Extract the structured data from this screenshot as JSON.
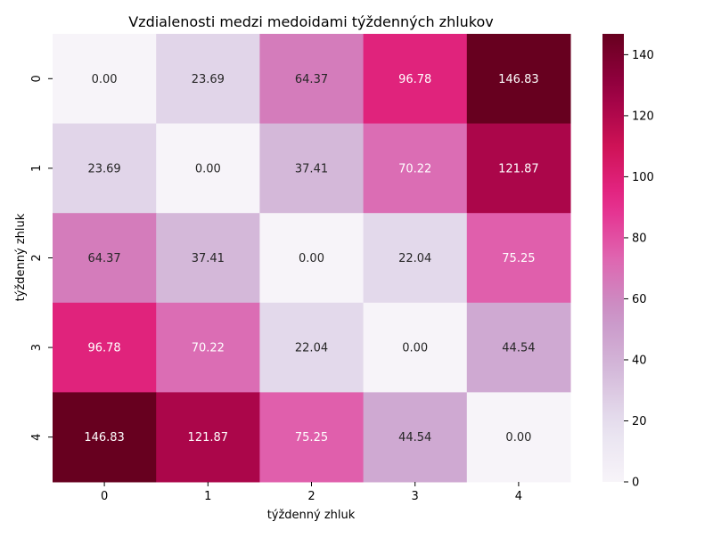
{
  "chart_data": {
    "type": "heatmap",
    "title": "Vzdialenosti medzi medoidami týždenných zhlukov",
    "xlabel": "týždenný zhluk",
    "ylabel": "týždenný zhluk",
    "x_categories": [
      "0",
      "1",
      "2",
      "3",
      "4"
    ],
    "y_categories": [
      "0",
      "1",
      "2",
      "3",
      "4"
    ],
    "values": [
      [
        0.0,
        23.69,
        64.37,
        96.78,
        146.83
      ],
      [
        23.69,
        0.0,
        37.41,
        70.22,
        121.87
      ],
      [
        64.37,
        37.41,
        0.0,
        22.04,
        75.25
      ],
      [
        96.78,
        70.22,
        22.04,
        0.0,
        44.54
      ],
      [
        146.83,
        121.87,
        75.25,
        44.54,
        0.0
      ]
    ],
    "value_labels": [
      [
        "0.00",
        "23.69",
        "64.37",
        "96.78",
        "146.83"
      ],
      [
        "23.69",
        "0.00",
        "37.41",
        "70.22",
        "121.87"
      ],
      [
        "64.37",
        "37.41",
        "0.00",
        "22.04",
        "75.25"
      ],
      [
        "96.78",
        "70.22",
        "22.04",
        "0.00",
        "44.54"
      ],
      [
        "146.83",
        "121.87",
        "75.25",
        "44.54",
        "0.00"
      ]
    ],
    "vmin": 0,
    "vmax": 146.83,
    "colormap": "PuRd",
    "colorbar_ticks": [
      0,
      20,
      40,
      60,
      80,
      100,
      120,
      140
    ],
    "colorbar_tick_labels": [
      "0",
      "20",
      "40",
      "60",
      "80",
      "100",
      "120",
      "140"
    ]
  }
}
